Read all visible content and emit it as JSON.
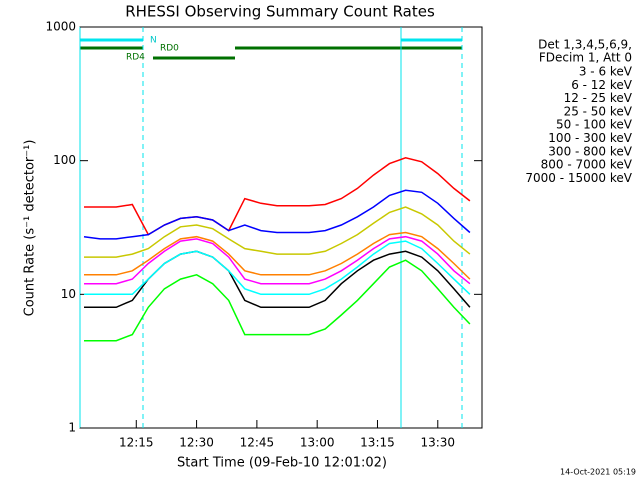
{
  "chart_data": {
    "type": "line",
    "title": "RHESSI Observing Summary Count Rates",
    "x_label": "Start Time (09-Feb-10 12:01:02)",
    "y_label": "Count Rate (s⁻¹ detector⁻¹)",
    "log_y": true,
    "x": [
      "12:02",
      "12:06",
      "12:10",
      "12:14",
      "12:18",
      "12:22",
      "12:26",
      "12:30",
      "12:34",
      "12:38",
      "12:42",
      "12:46",
      "12:50",
      "12:54",
      "12:58",
      "13:02",
      "13:06",
      "13:10",
      "13:14",
      "13:18",
      "13:22",
      "13:26",
      "13:30",
      "13:34",
      "13:38"
    ],
    "xlim": [
      "12:01",
      "13:41"
    ],
    "xticks": [
      "12:15",
      "12:30",
      "12:45",
      "13:00",
      "13:15",
      "13:30"
    ],
    "ylim": [
      1,
      1000
    ],
    "yticks": [
      1,
      10,
      100,
      1000
    ],
    "legend_header": [
      "Det 1,3,4,5,6,9,",
      "FDecim 1, Att 0"
    ],
    "flags": [
      "N",
      "RD0",
      "RD4"
    ],
    "footer": "14-Oct-2021 05:19",
    "series": [
      {
        "name": "3 - 6 keV",
        "color": "#000000",
        "values": [
          8,
          8,
          8,
          9,
          13,
          17,
          20,
          21,
          19,
          15,
          9,
          8,
          8,
          8,
          8,
          9,
          12,
          15,
          18,
          20,
          21,
          19,
          15,
          11,
          8
        ]
      },
      {
        "name": "6 - 12 keV",
        "color": "#ff00ff",
        "values": [
          12,
          12,
          12,
          13,
          17,
          21,
          25,
          26,
          24,
          19,
          13,
          12,
          12,
          12,
          12,
          13,
          15,
          18,
          22,
          26,
          27,
          25,
          20,
          15,
          12
        ]
      },
      {
        "name": "12 - 25 keV",
        "color": "#00ff00",
        "values": [
          4.5,
          4.5,
          4.5,
          5,
          8,
          11,
          13,
          14,
          12,
          9,
          5,
          5,
          5,
          5,
          5,
          5.5,
          7,
          9,
          12,
          16,
          18,
          15,
          11,
          8,
          6
        ]
      },
      {
        "name": "25 - 50 keV",
        "color": "#00ffff",
        "values": [
          10,
          10,
          10,
          10,
          13,
          17,
          20,
          21,
          19,
          15,
          11,
          10,
          10,
          10,
          10,
          11,
          13,
          16,
          20,
          24,
          25,
          22,
          17,
          13,
          10
        ]
      },
      {
        "name": "50 - 100 keV",
        "color": "#c8c800",
        "values": [
          19,
          19,
          19,
          20,
          22,
          27,
          32,
          33,
          31,
          26,
          22,
          21,
          20,
          20,
          20,
          21,
          24,
          28,
          34,
          41,
          45,
          40,
          33,
          25,
          20
        ]
      },
      {
        "name": "100 - 300 keV",
        "color": "#ff0000",
        "values": [
          45,
          45,
          45,
          47,
          28,
          33,
          37,
          38,
          36,
          30,
          52,
          48,
          46,
          46,
          46,
          47,
          52,
          62,
          78,
          95,
          105,
          98,
          80,
          62,
          50
        ]
      },
      {
        "name": "300 - 800 keV",
        "color": "#0000ff",
        "values": [
          27,
          26,
          26,
          27,
          28,
          33,
          37,
          38,
          36,
          30,
          33,
          30,
          29,
          29,
          29,
          30,
          33,
          38,
          45,
          55,
          60,
          58,
          48,
          37,
          29
        ]
      },
      {
        "name": "800 - 7000 keV",
        "color": "#ff8000",
        "values": [
          14,
          14,
          14,
          15,
          18,
          22,
          26,
          27,
          25,
          20,
          15,
          14,
          14,
          14,
          14,
          15,
          17,
          20,
          24,
          28,
          29,
          27,
          22,
          17,
          13
        ]
      },
      {
        "name": "7000 - 15000 keV",
        "color": "#808000",
        "values": [
          null,
          null,
          null,
          null,
          null,
          null,
          null,
          null,
          null,
          null,
          null,
          null,
          null,
          null,
          null,
          null,
          null,
          null,
          null,
          null,
          null,
          null,
          null,
          null,
          null
        ]
      }
    ]
  }
}
